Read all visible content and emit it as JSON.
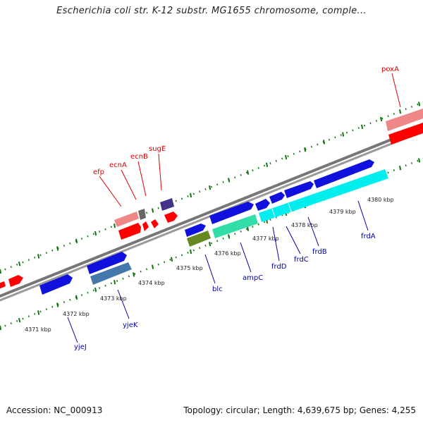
{
  "title": "Escherichia coli str. K-12 substr. MG1655 chromosome, comple...",
  "footer": {
    "accession": "Accession: NC_000913",
    "topology": "Topology: circular; Length: 4,639,675 bp; Genes: 4,255"
  },
  "colors": {
    "forward_label": "#dd0000",
    "reverse_label": "#0000aa",
    "tick": "#117711",
    "backbone": "#888888",
    "red": "#ff0000",
    "pink": "#ee8888",
    "grey": "#666666",
    "purple": "#443388",
    "blue": "#1111dd",
    "steel": "#4477aa",
    "olive": "#668822",
    "green": "#33ddaa",
    "cyan": "#00eeee"
  },
  "kbp_labels": [
    "4371 kbp",
    "4372 kbp",
    "4373 kbp",
    "4374 kbp",
    "4375 kbp",
    "4376 kbp",
    "4377 kbp",
    "4378 kbp",
    "4379 kbp",
    "4380 kbp"
  ],
  "genes": [
    {
      "name": "poxA",
      "strand": "forward"
    },
    {
      "name": "efp",
      "strand": "forward"
    },
    {
      "name": "ecnA",
      "strand": "forward"
    },
    {
      "name": "ecnB",
      "strand": "forward"
    },
    {
      "name": "sugE",
      "strand": "forward"
    },
    {
      "name": "yjeJ",
      "strand": "reverse"
    },
    {
      "name": "yjeK",
      "strand": "reverse"
    },
    {
      "name": "blc",
      "strand": "reverse"
    },
    {
      "name": "ampC",
      "strand": "reverse"
    },
    {
      "name": "frdD",
      "strand": "reverse"
    },
    {
      "name": "frdC",
      "strand": "reverse"
    },
    {
      "name": "frdB",
      "strand": "reverse"
    },
    {
      "name": "frdA",
      "strand": "reverse"
    }
  ]
}
